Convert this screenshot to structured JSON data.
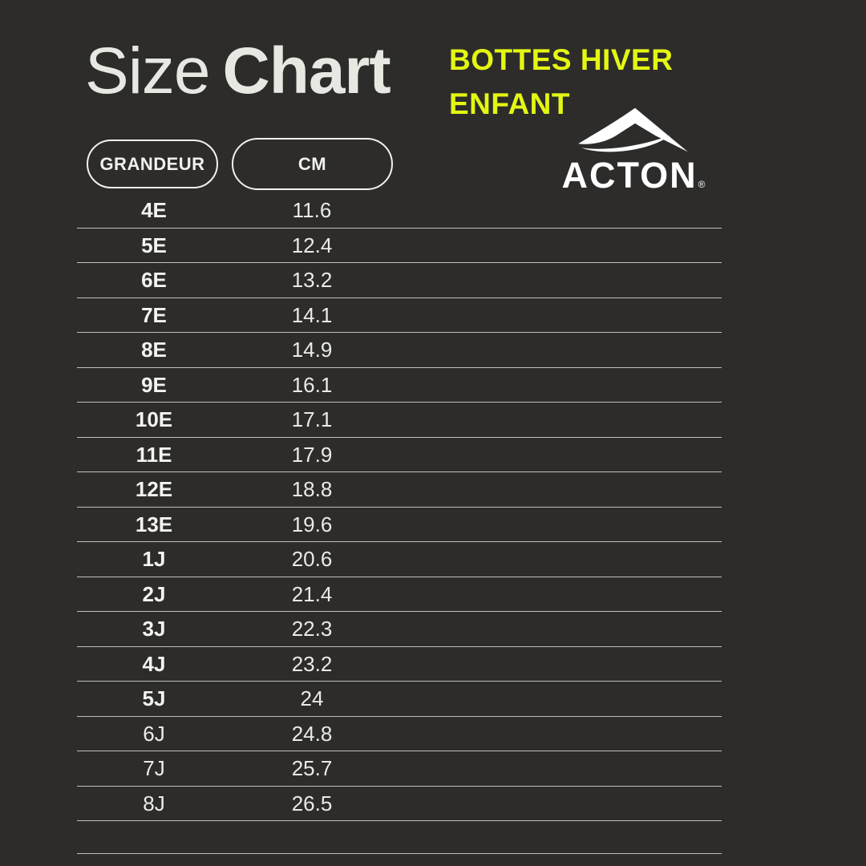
{
  "page": {
    "background": "#2d2c2b"
  },
  "header": {
    "title_regular": "Size",
    "title_bold": "Chart",
    "category_line1": "BOTTES HIVER",
    "category_line2": "ENFANT",
    "category_color": "#e3f712",
    "brand_name": "ACTON",
    "brand_reg": "®",
    "brand_logo_icon": "acton-mountain-swoosh",
    "text_color": "#e8e8e3"
  },
  "table": {
    "columns": [
      {
        "label": "GRANDEUR"
      },
      {
        "label": "CM"
      }
    ],
    "rows": [
      {
        "size": "4E",
        "cm": "11.6",
        "bold": true
      },
      {
        "size": "5E",
        "cm": "12.4",
        "bold": true
      },
      {
        "size": "6E",
        "cm": "13.2",
        "bold": true
      },
      {
        "size": "7E",
        "cm": "14.1",
        "bold": true
      },
      {
        "size": "8E",
        "cm": "14.9",
        "bold": true
      },
      {
        "size": "9E",
        "cm": "16.1",
        "bold": true
      },
      {
        "size": "10E",
        "cm": "17.1",
        "bold": true
      },
      {
        "size": "11E",
        "cm": "17.9",
        "bold": true
      },
      {
        "size": "12E",
        "cm": "18.8",
        "bold": true
      },
      {
        "size": "13E",
        "cm": "19.6",
        "bold": true
      },
      {
        "size": "1J",
        "cm": "20.6",
        "bold": true
      },
      {
        "size": "2J",
        "cm": "21.4",
        "bold": true
      },
      {
        "size": "3J",
        "cm": "22.3",
        "bold": true
      },
      {
        "size": "4J",
        "cm": "23.2",
        "bold": true
      },
      {
        "size": "5J",
        "cm": "24",
        "bold": true
      },
      {
        "size": "6J",
        "cm": "24.8",
        "bold": false
      },
      {
        "size": "7J",
        "cm": "25.7",
        "bold": false
      },
      {
        "size": "8J",
        "cm": "26.5",
        "bold": false
      }
    ]
  },
  "chart_data": {
    "type": "table",
    "title": "Size Chart",
    "subtitle": "BOTTES HIVER ENFANT",
    "brand": "ACTON",
    "columns": [
      "GRANDEUR",
      "CM"
    ],
    "rows": [
      [
        "4E",
        11.6
      ],
      [
        "5E",
        12.4
      ],
      [
        "6E",
        13.2
      ],
      [
        "7E",
        14.1
      ],
      [
        "8E",
        14.9
      ],
      [
        "9E",
        16.1
      ],
      [
        "10E",
        17.1
      ],
      [
        "11E",
        17.9
      ],
      [
        "12E",
        18.8
      ],
      [
        "13E",
        19.6
      ],
      [
        "1J",
        20.6
      ],
      [
        "2J",
        21.4
      ],
      [
        "3J",
        22.3
      ],
      [
        "4J",
        23.2
      ],
      [
        "5J",
        24
      ],
      [
        "6J",
        24.8
      ],
      [
        "7J",
        25.7
      ],
      [
        "8J",
        26.5
      ]
    ]
  }
}
